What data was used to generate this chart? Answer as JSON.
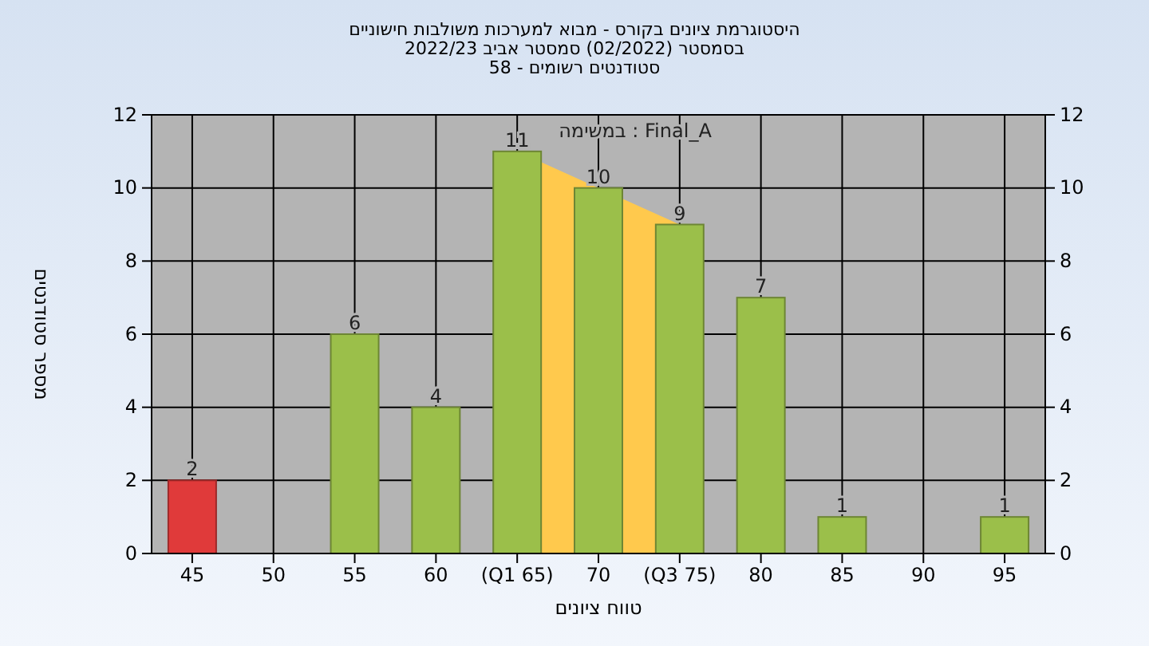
{
  "chart_data": {
    "type": "bar",
    "title": "היסטוגרמת ציונים בקורס - מבוא למערכות משולבות חישוניים",
    "subtitle": "בסמסטר  (02/2022)  סמסטר אביב 2022/23\nסטודנטים רשומים - 58",
    "xlabel": "טווח ציונים",
    "ylabel": "מספר סטודנטים",
    "annotations": [
      "במשימה : Final_A"
    ],
    "categories": [
      "45",
      "50",
      "55",
      "60",
      "(Q1 65)",
      "70",
      "(Q3 75)",
      "80",
      "85",
      "90",
      "95"
    ],
    "series": [
      {
        "type": "area",
        "color": "#ffc94d",
        "values": [
          null,
          null,
          null,
          null,
          11,
          10,
          9,
          null,
          null,
          null,
          null
        ]
      },
      {
        "colors": [
          "#e03a3a",
          "#9bbf4a",
          "#9bbf4a",
          "#9bbf4a",
          "#9bbf4a",
          "#9bbf4a",
          "#9bbf4a",
          "#9bbf4a",
          "#9bbf4a",
          "#9bbf4a",
          "#9bbf4a"
        ],
        "values": [
          2,
          null,
          6,
          4,
          11,
          10,
          9,
          7,
          1,
          null,
          1
        ],
        "value_labels": [
          "2",
          null,
          "6",
          "4",
          "11",
          "10",
          "9",
          "7",
          "1",
          null,
          "1"
        ]
      }
    ],
    "ylim": [
      0,
      12
    ],
    "yticks": [
      0,
      2,
      4,
      6,
      8,
      10,
      12
    ],
    "y2lim": [
      0,
      12
    ],
    "y2ticks": [
      0,
      2,
      4,
      6,
      8,
      10,
      12
    ],
    "grid": true
  }
}
